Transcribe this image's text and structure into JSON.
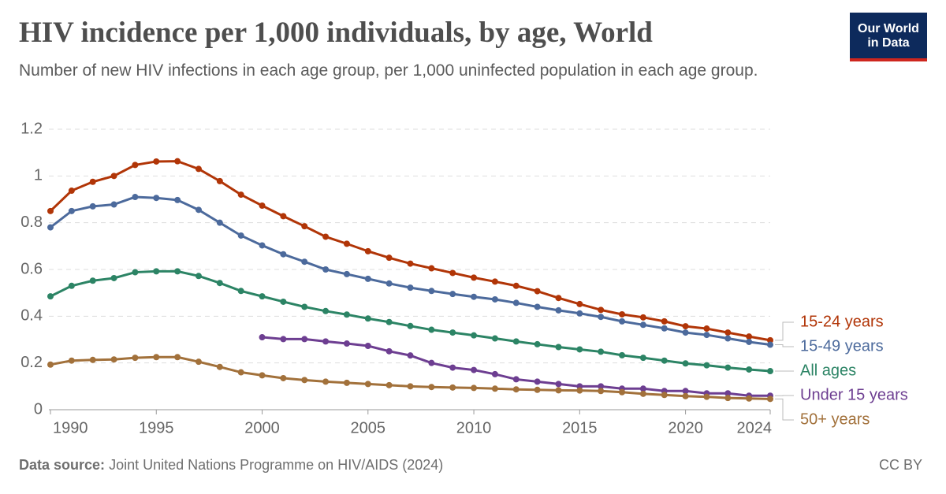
{
  "chart_data": {
    "type": "line",
    "title": "HIV incidence per 1,000 individuals, by age, World",
    "subtitle": "Number of new HIV infections in each age group, per 1,000 uninfected population in each age group.",
    "logo": [
      "Our World",
      "in Data"
    ],
    "source_label": "Data source:",
    "source": "Joint United Nations Programme on HIV/AIDS (2024)",
    "license": "CC BY",
    "x": [
      1990,
      1991,
      1992,
      1993,
      1994,
      1995,
      1996,
      1997,
      1998,
      1999,
      2000,
      2001,
      2002,
      2003,
      2004,
      2005,
      2006,
      2007,
      2008,
      2009,
      2010,
      2011,
      2012,
      2013,
      2014,
      2015,
      2016,
      2017,
      2018,
      2019,
      2020,
      2021,
      2022,
      2023,
      2024
    ],
    "xlim": [
      1990,
      2024
    ],
    "xticks": [
      1990,
      1995,
      2000,
      2005,
      2010,
      2015,
      2020,
      2024
    ],
    "ylim": [
      0,
      1.2
    ],
    "yticks": [
      0,
      0.2,
      0.4,
      0.6,
      0.8,
      1,
      1.2
    ],
    "grid": true,
    "series": [
      {
        "name": "15-24 years",
        "color": "#b13507",
        "values": [
          0.85,
          0.937,
          0.975,
          1.0,
          1.047,
          1.062,
          1.063,
          1.03,
          0.978,
          0.92,
          0.873,
          0.828,
          0.785,
          0.74,
          0.71,
          0.678,
          0.65,
          0.625,
          0.605,
          0.585,
          0.565,
          0.548,
          0.53,
          0.507,
          0.478,
          0.452,
          0.427,
          0.408,
          0.395,
          0.378,
          0.357,
          0.347,
          0.33,
          0.313,
          0.297
        ]
      },
      {
        "name": "15-49 years",
        "color": "#4c6a9c",
        "values": [
          0.78,
          0.85,
          0.87,
          0.878,
          0.91,
          0.906,
          0.897,
          0.855,
          0.8,
          0.745,
          0.703,
          0.665,
          0.633,
          0.6,
          0.58,
          0.56,
          0.54,
          0.522,
          0.508,
          0.495,
          0.483,
          0.472,
          0.457,
          0.44,
          0.425,
          0.412,
          0.397,
          0.378,
          0.363,
          0.348,
          0.33,
          0.32,
          0.305,
          0.29,
          0.278
        ]
      },
      {
        "name": "All ages",
        "color": "#2c8465",
        "values": [
          0.485,
          0.53,
          0.552,
          0.563,
          0.588,
          0.592,
          0.592,
          0.572,
          0.542,
          0.508,
          0.485,
          0.462,
          0.44,
          0.422,
          0.407,
          0.39,
          0.375,
          0.358,
          0.342,
          0.33,
          0.318,
          0.305,
          0.292,
          0.28,
          0.268,
          0.258,
          0.248,
          0.233,
          0.222,
          0.21,
          0.198,
          0.19,
          0.18,
          0.172,
          0.165
        ]
      },
      {
        "name": "Under 15 years",
        "color": "#6d3e91",
        "values": [
          null,
          null,
          null,
          null,
          null,
          null,
          null,
          null,
          null,
          null,
          0.31,
          0.302,
          0.302,
          0.292,
          0.283,
          0.273,
          0.25,
          0.232,
          0.2,
          0.18,
          0.17,
          0.152,
          0.13,
          0.12,
          0.11,
          0.1,
          0.1,
          0.09,
          0.09,
          0.08,
          0.08,
          0.07,
          0.07,
          0.06,
          0.06
        ]
      },
      {
        "name": "50+ years",
        "color": "#a2713b",
        "values": [
          0.193,
          0.21,
          0.213,
          0.215,
          0.222,
          0.225,
          0.225,
          0.205,
          0.183,
          0.16,
          0.147,
          0.135,
          0.127,
          0.12,
          0.115,
          0.11,
          0.105,
          0.1,
          0.097,
          0.095,
          0.093,
          0.09,
          0.087,
          0.085,
          0.083,
          0.082,
          0.08,
          0.075,
          0.068,
          0.063,
          0.058,
          0.055,
          0.05,
          0.048,
          0.046
        ]
      }
    ]
  }
}
